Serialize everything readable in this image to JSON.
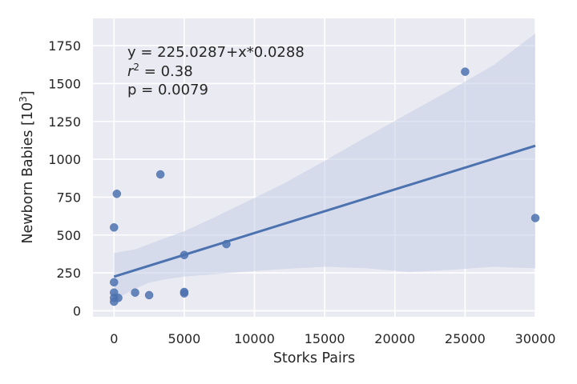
{
  "chart_data": {
    "type": "scatter",
    "title": "",
    "xlabel": "Storks Pairs",
    "ylabel_text": "Newborn Babies [10",
    "ylabel_sup": "3",
    "ylabel_close": "]",
    "xlim": [
      -1500,
      30000
    ],
    "ylim": [
      -40,
      1930
    ],
    "xticks": [
      0,
      5000,
      10000,
      15000,
      20000,
      25000,
      30000
    ],
    "yticks": [
      0,
      250,
      500,
      750,
      1000,
      1250,
      1500,
      1750
    ],
    "grid": true,
    "colors": {
      "background": "#eaeaf2",
      "grid": "#ffffff",
      "points": "#4c72b0",
      "line": "#4c72b0",
      "band": "#c5cde6"
    },
    "points": [
      {
        "x": 0,
        "y": 550
      },
      {
        "x": 200,
        "y": 772
      },
      {
        "x": 3300,
        "y": 900
      },
      {
        "x": 25000,
        "y": 1578
      },
      {
        "x": 30000,
        "y": 612
      },
      {
        "x": 5000,
        "y": 368
      },
      {
        "x": 8000,
        "y": 440
      },
      {
        "x": 0,
        "y": 188
      },
      {
        "x": 0,
        "y": 120
      },
      {
        "x": 1500,
        "y": 120
      },
      {
        "x": 2500,
        "y": 103
      },
      {
        "x": 5000,
        "y": 124
      },
      {
        "x": 5000,
        "y": 115
      },
      {
        "x": 0,
        "y": 85
      },
      {
        "x": 300,
        "y": 85
      },
      {
        "x": 0,
        "y": 60
      }
    ],
    "regression": {
      "intercept": 225.0287,
      "slope": 0.0288,
      "x_range": [
        0,
        30000
      ]
    },
    "confidence_band": {
      "x": [
        0,
        500,
        1500,
        2500,
        3500,
        5000,
        7000,
        9000,
        12000,
        15000,
        18000,
        21000,
        24000,
        27000,
        30000
      ],
      "upper": [
        380,
        390,
        405,
        440,
        475,
        525,
        610,
        700,
        835,
        990,
        1150,
        1305,
        1460,
        1620,
        1830
      ],
      "lower": [
        60,
        95,
        145,
        185,
        205,
        225,
        240,
        255,
        275,
        290,
        280,
        255,
        270,
        290,
        280
      ]
    },
    "annotations": {
      "line1": "y = 225.0287+x*0.0288",
      "line2_var": "r",
      "line2_sup": "2",
      "line2_rest": " = 0.38",
      "line3": "p = 0.0079"
    }
  }
}
